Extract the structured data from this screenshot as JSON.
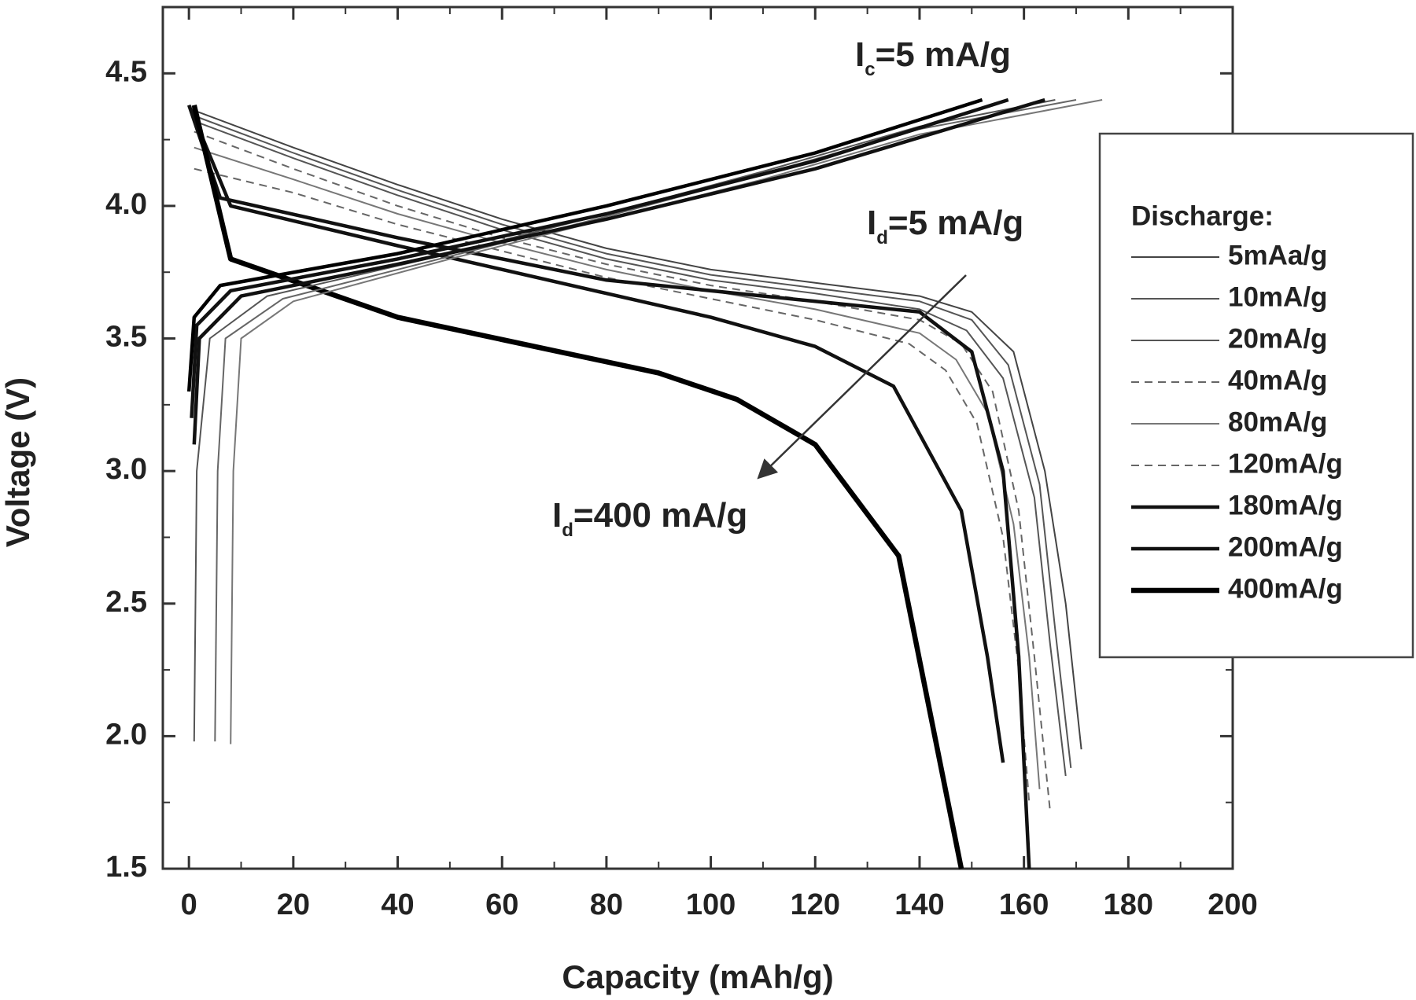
{
  "chart_data": {
    "type": "line",
    "xlabel": "Capacity (mAh/g)",
    "ylabel": "Voltage (V)",
    "xlim": [
      -5,
      200
    ],
    "ylim": [
      1.5,
      4.75
    ],
    "xticks": [
      0,
      20,
      40,
      60,
      80,
      100,
      120,
      140,
      160,
      180,
      200
    ],
    "yticks": [
      1.5,
      {
        "value": 2,
        "label": "2.0"
      },
      2.5,
      {
        "value": 3,
        "label": "3.0"
      },
      3.5,
      {
        "value": 4,
        "label": "4.0"
      },
      4.5
    ],
    "legend_title": "Discharge:",
    "legend": "upper right",
    "annotations": [
      {
        "main": "I",
        "sub": "c",
        "text": "=5 mA/g"
      },
      {
        "main": "I",
        "sub": "d",
        "text": "=5 mA/g"
      },
      {
        "main": "I",
        "sub": "d",
        "text": "=400 mA/g"
      }
    ],
    "series": [
      {
        "name": "5mAa/g",
        "color": "#444",
        "style": "thin",
        "x": [
          1,
          20,
          40,
          60,
          80,
          100,
          120,
          140,
          150,
          158,
          164,
          168,
          171
        ],
        "values": [
          4.36,
          4.22,
          4.08,
          3.95,
          3.84,
          3.76,
          3.71,
          3.66,
          3.6,
          3.45,
          3.0,
          2.5,
          1.95
        ]
      },
      {
        "name": "10mA/g",
        "color": "#555",
        "style": "thin",
        "x": [
          1,
          20,
          40,
          60,
          80,
          100,
          120,
          140,
          150,
          157,
          163,
          166,
          169
        ],
        "values": [
          4.34,
          4.2,
          4.06,
          3.93,
          3.82,
          3.74,
          3.69,
          3.64,
          3.57,
          3.4,
          2.95,
          2.4,
          1.88
        ]
      },
      {
        "name": "20mA/g",
        "color": "#555",
        "style": "thin",
        "x": [
          1,
          20,
          40,
          60,
          80,
          100,
          120,
          140,
          149,
          156,
          162,
          165,
          168
        ],
        "values": [
          4.32,
          4.18,
          4.04,
          3.91,
          3.8,
          3.72,
          3.67,
          3.61,
          3.53,
          3.35,
          2.9,
          2.35,
          1.85
        ]
      },
      {
        "name": "40mA/g",
        "color": "#666",
        "style": "dashed",
        "x": [
          1,
          20,
          40,
          60,
          80,
          100,
          120,
          140,
          148,
          154,
          159,
          162,
          165
        ],
        "values": [
          4.28,
          4.14,
          4.0,
          3.88,
          3.78,
          3.7,
          3.64,
          3.57,
          3.48,
          3.3,
          2.85,
          2.3,
          1.72
        ]
      },
      {
        "name": "80mA/g",
        "color": "#777",
        "style": "thin",
        "x": [
          1,
          20,
          40,
          60,
          80,
          100,
          120,
          140,
          147,
          153,
          158,
          161,
          163
        ],
        "values": [
          4.22,
          4.1,
          3.97,
          3.86,
          3.76,
          3.68,
          3.61,
          3.52,
          3.42,
          3.22,
          2.8,
          2.3,
          1.8
        ]
      },
      {
        "name": "120mA/g",
        "color": "#666",
        "style": "dashed",
        "x": [
          1,
          20,
          40,
          60,
          80,
          100,
          120,
          138,
          145,
          151,
          156,
          159,
          161
        ],
        "values": [
          4.14,
          4.05,
          3.93,
          3.83,
          3.73,
          3.65,
          3.57,
          3.48,
          3.38,
          3.18,
          2.75,
          2.25,
          1.75
        ]
      },
      {
        "name": "180mA/g",
        "color": "#111",
        "style": "thick",
        "x": [
          0,
          6,
          40,
          80,
          120,
          140,
          150,
          156,
          159,
          161
        ],
        "values": [
          4.38,
          4.03,
          3.88,
          3.72,
          3.64,
          3.6,
          3.45,
          3.0,
          2.3,
          1.5
        ]
      },
      {
        "name": "200mA/g",
        "color": "#111",
        "style": "thick",
        "x": [
          0,
          8,
          40,
          80,
          100,
          120,
          135,
          148,
          153,
          156
        ],
        "values": [
          4.38,
          4.0,
          3.85,
          3.67,
          3.58,
          3.47,
          3.32,
          2.85,
          2.3,
          1.9
        ]
      },
      {
        "name": "400mA/g",
        "color": "#000",
        "style": "bold",
        "x": [
          1,
          8,
          40,
          90,
          105,
          120,
          136,
          148
        ],
        "values": [
          4.38,
          3.8,
          3.58,
          3.37,
          3.27,
          3.1,
          2.68,
          1.5
        ]
      },
      {
        "color": "#777",
        "style": "thin",
        "x": [
          8,
          8.5,
          10,
          20,
          50,
          80,
          110,
          140,
          175
        ],
        "values": [
          1.97,
          3.0,
          3.5,
          3.64,
          3.8,
          3.95,
          4.1,
          4.27,
          4.4
        ]
      },
      {
        "color": "#666",
        "style": "thin",
        "x": [
          5,
          5.5,
          7,
          18,
          50,
          80,
          110,
          140,
          170
        ],
        "values": [
          1.98,
          3.0,
          3.5,
          3.65,
          3.81,
          3.96,
          4.12,
          4.29,
          4.4
        ]
      },
      {
        "color": "#555",
        "style": "thin",
        "x": [
          1,
          1.5,
          4,
          15,
          50,
          80,
          110,
          140,
          166
        ],
        "values": [
          1.98,
          3.0,
          3.5,
          3.66,
          3.82,
          3.97,
          4.13,
          4.3,
          4.4
        ]
      },
      {
        "color": "#111",
        "style": "thick",
        "x": [
          1,
          2,
          10,
          40,
          80,
          120,
          164
        ],
        "values": [
          3.1,
          3.5,
          3.66,
          3.78,
          3.95,
          4.14,
          4.4
        ]
      },
      {
        "color": "#111",
        "style": "thick",
        "x": [
          0.5,
          1.5,
          8,
          40,
          80,
          120,
          157
        ],
        "values": [
          3.2,
          3.55,
          3.68,
          3.8,
          3.97,
          4.17,
          4.4
        ]
      },
      {
        "color": "#000",
        "style": "thick",
        "x": [
          0,
          1,
          6,
          40,
          80,
          120,
          152
        ],
        "values": [
          3.3,
          3.58,
          3.7,
          3.82,
          4.0,
          4.2,
          4.4
        ]
      }
    ]
  }
}
